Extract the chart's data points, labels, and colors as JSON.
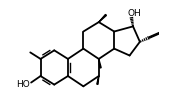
{
  "bg_color": "#ffffff",
  "line_color": "#000000",
  "line_width": 1.3,
  "figsize": [
    1.77,
    0.99
  ],
  "dpi": 100,
  "xlim": [
    0.3,
    8.5
  ],
  "ylim": [
    0.8,
    6.5
  ],
  "HO_fontsize": 6.5,
  "OH_fontsize": 6.5
}
